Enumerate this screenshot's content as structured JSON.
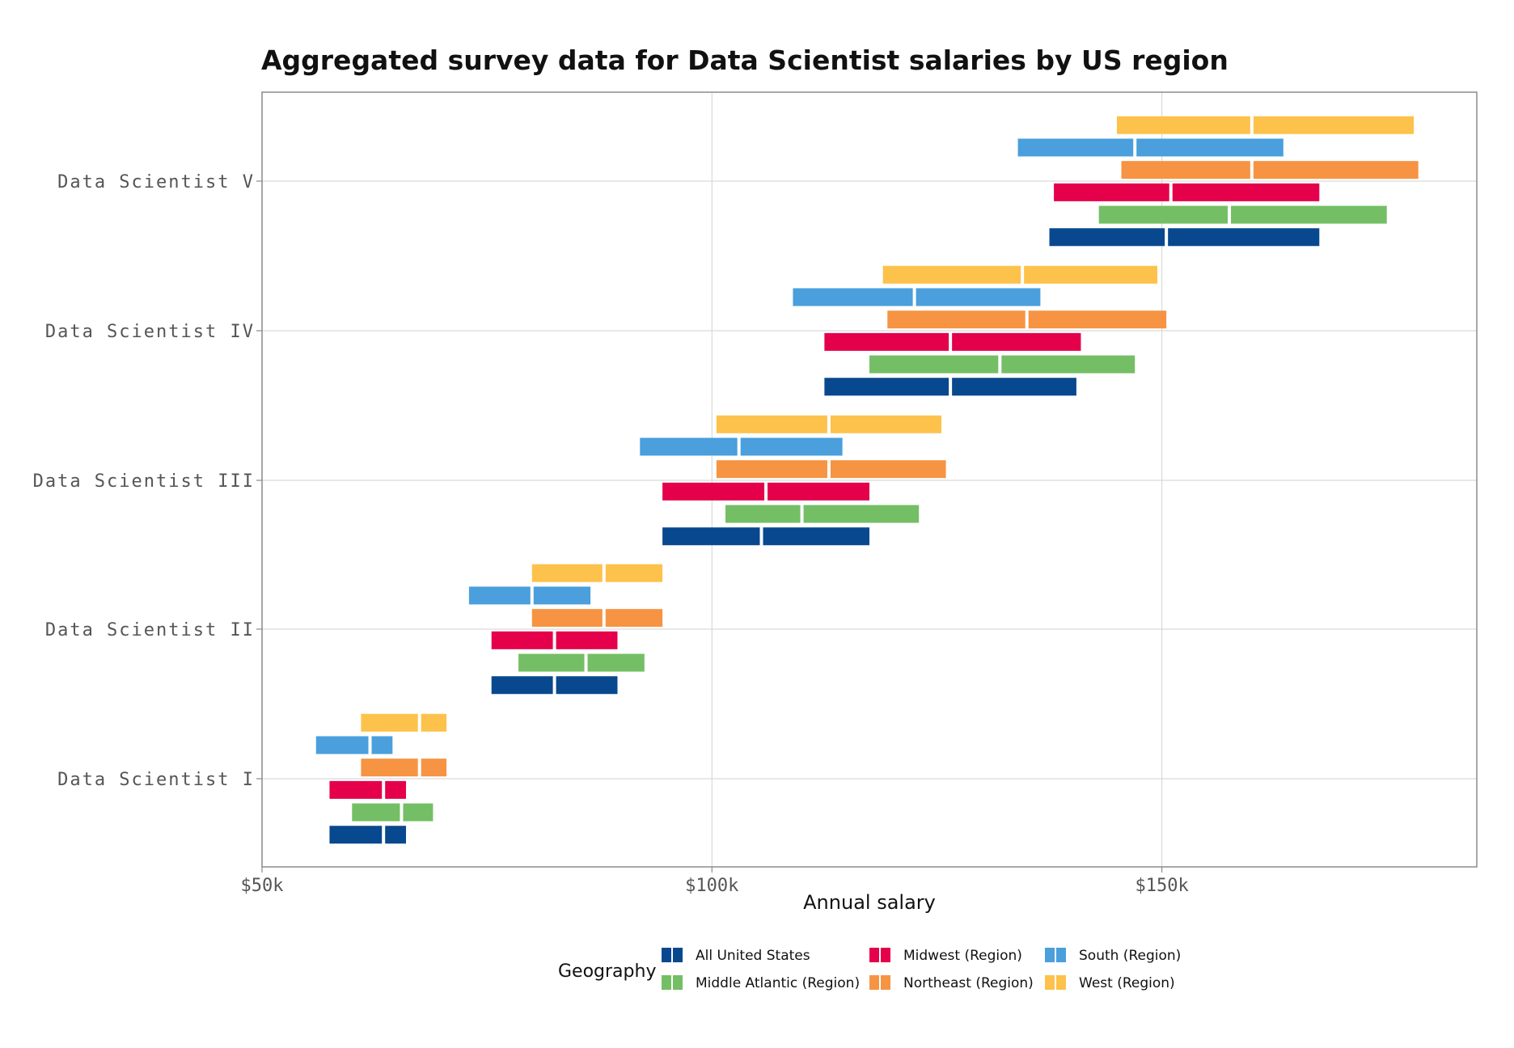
{
  "chart_data": {
    "type": "range-bar",
    "title": "Aggregated survey data for Data Scientist salaries by US region",
    "xlabel": "Annual salary",
    "ylabel": "",
    "xlim": [
      50000,
      185000
    ],
    "x_ticks": [
      {
        "value": 50000,
        "label": "$50k"
      },
      {
        "value": 100000,
        "label": "$100k"
      },
      {
        "value": 150000,
        "label": "$150k"
      }
    ],
    "categories": [
      "Data Scientist I",
      "Data Scientist II",
      "Data Scientist III",
      "Data Scientist IV",
      "Data Scientist V"
    ],
    "grid": true,
    "legend": {
      "title": "Geography",
      "position": "bottom"
    },
    "series": [
      {
        "name": "All United States",
        "color": "#08488e",
        "values": [
          [
            57500,
            63500,
            66000
          ],
          [
            75500,
            82500,
            89500
          ],
          [
            94500,
            105500,
            117500
          ],
          [
            112500,
            126500,
            140500
          ],
          [
            137500,
            150500,
            167500
          ]
        ]
      },
      {
        "name": "Middle Atlantic (Region)",
        "color": "#74bf65",
        "values": [
          [
            60000,
            65500,
            69000
          ],
          [
            78500,
            86000,
            92500
          ],
          [
            101500,
            110000,
            123000
          ],
          [
            117500,
            132000,
            147000
          ],
          [
            143000,
            157500,
            175000
          ]
        ]
      },
      {
        "name": "Midwest (Region)",
        "color": "#e4004a",
        "values": [
          [
            57500,
            63500,
            66000
          ],
          [
            75500,
            82500,
            89500
          ],
          [
            94500,
            106000,
            117500
          ],
          [
            112500,
            126500,
            141000
          ],
          [
            138000,
            151000,
            167500
          ]
        ]
      },
      {
        "name": "Northeast (Region)",
        "color": "#f69443",
        "values": [
          [
            61000,
            67500,
            70500
          ],
          [
            80000,
            88000,
            94500
          ],
          [
            100500,
            113000,
            126000
          ],
          [
            119500,
            135000,
            150500
          ],
          [
            145500,
            160000,
            178500
          ]
        ]
      },
      {
        "name": "South (Region)",
        "color": "#4a9fdc",
        "values": [
          [
            56000,
            62000,
            64500
          ],
          [
            73000,
            80000,
            86500
          ],
          [
            92000,
            103000,
            114500
          ],
          [
            109000,
            122500,
            136500
          ],
          [
            134000,
            147000,
            163500
          ]
        ]
      },
      {
        "name": "West (Region)",
        "color": "#fdc24c",
        "values": [
          [
            61000,
            67500,
            70500
          ],
          [
            80000,
            88000,
            94500
          ],
          [
            100500,
            113000,
            125500
          ],
          [
            119000,
            134500,
            149500
          ],
          [
            145000,
            160000,
            178000
          ]
        ]
      }
    ]
  }
}
